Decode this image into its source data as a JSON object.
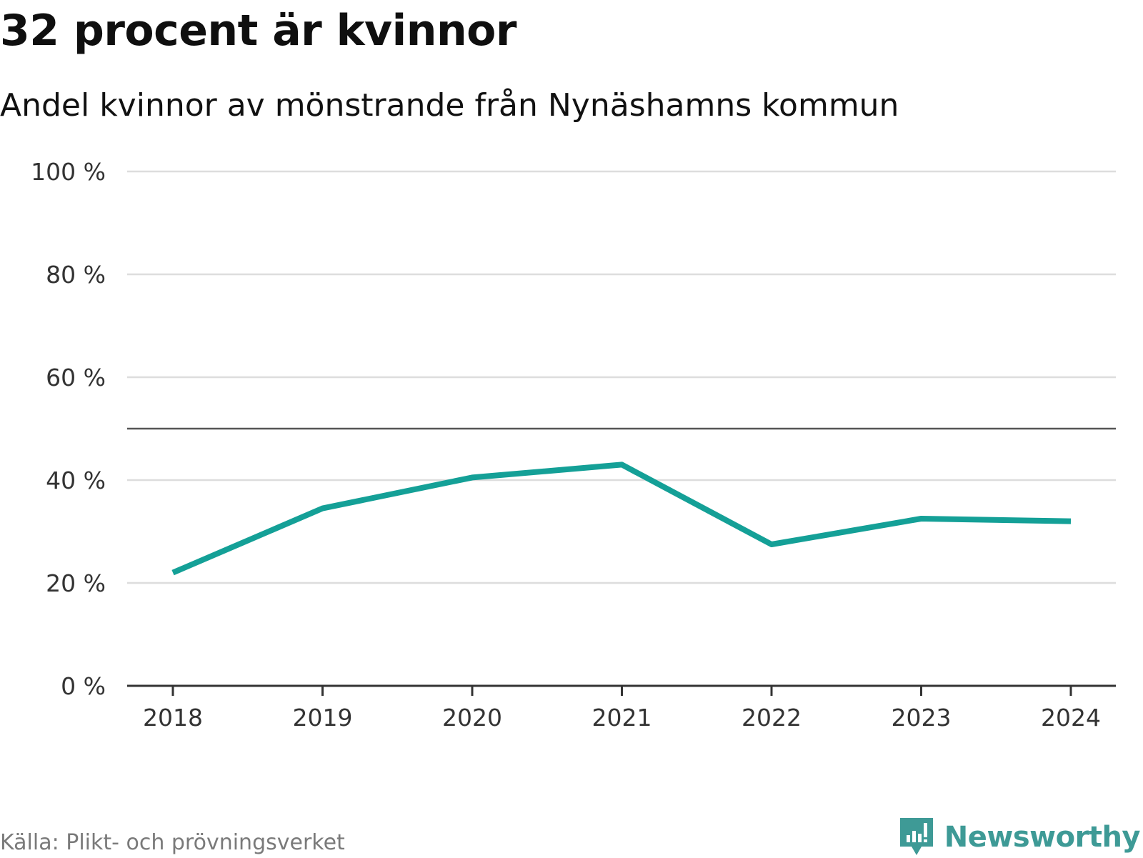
{
  "header": {
    "title": "32 procent är kvinnor",
    "subtitle": "Andel kvinnor av mönstrande från Nynäshamns kommun"
  },
  "footer": {
    "source": "Källa: Plikt- och prövningsverket",
    "brand": "Newsworthy"
  },
  "colors": {
    "line": "#14a097",
    "grid": "#dddddd",
    "reference": "#555555",
    "axis": "#333333",
    "brand": "#3e9a96"
  },
  "icons": {
    "brand_logo": "bar-chart-speech-bubble-icon"
  },
  "chart_data": {
    "type": "line",
    "title": "32 procent är kvinnor",
    "subtitle": "Andel kvinnor av mönstrande från Nynäshamns kommun",
    "xlabel": "",
    "ylabel": "",
    "categories": [
      "2018",
      "2019",
      "2020",
      "2021",
      "2022",
      "2023",
      "2024"
    ],
    "series": [
      {
        "name": "Andel kvinnor",
        "values": [
          22,
          34.5,
          40.5,
          43,
          27.5,
          32.5,
          32
        ]
      }
    ],
    "ylim": [
      0,
      100
    ],
    "yticks": [
      0,
      20,
      40,
      60,
      80,
      100
    ],
    "ytick_labels": [
      "0 %",
      "20 %",
      "40 %",
      "60 %",
      "80 %",
      "100 %"
    ],
    "reference_line": 50,
    "grid": true,
    "source": "Källa: Plikt- och prövningsverket"
  }
}
